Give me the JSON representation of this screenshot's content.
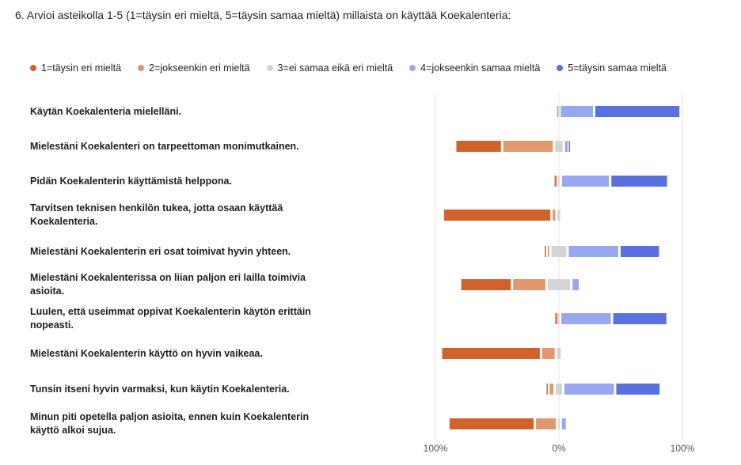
{
  "question": "6. Arvioi asteikolla 1-5 (1=täysin eri mieltä, 5=täysin samaa mieltä) millaista on käyttää Koekalenteria:",
  "chart_data": {
    "type": "bar",
    "stacking": "diverging",
    "legend_position": "top",
    "series": [
      {
        "name": "1=täysin eri mieltä",
        "color": "#d2622c"
      },
      {
        "name": "2=jokseenkin eri mieltä",
        "color": "#e0986c"
      },
      {
        "name": "3=ei samaa eikä eri mieltä",
        "color": "#d4d4d4"
      },
      {
        "name": "4=jokseenkin samaa mieltä",
        "color": "#97a8f0"
      },
      {
        "name": "5=täysin samaa mieltä",
        "color": "#5a70e0"
      }
    ],
    "categories": [
      "Käytän Koekalenteria mielelläni.",
      "Mielestäni Koekalenteri on tarpeettoman monimutkainen.",
      "Pidän Koekalenterin käyttämistä helppona.",
      "Tarvitsen teknisen henkilön tukea, jotta osaan käyttää Koekalenteria.",
      "Mielestäni Koekalenterin eri osat toimivat hyvin yhteen.",
      "Mielestäni Koekalenterissa on liian paljon eri lailla toimivia asioita.",
      "Luulen, että useimmat oppivat Koekalenterin käytön erittäin nopeasti.",
      "Mielestäni Koekalenterin käyttö on hyvin vaikeaa.",
      "Tunsin itseni hyvin varmaksi, kun käytin Koekalenteria.",
      "Minun piti opetella paljon asioita, ennen kuin Koekalenterin käyttö alkoi sujua."
    ],
    "values": [
      [
        0,
        1,
        1,
        28,
        70
      ],
      [
        38,
        42,
        8,
        4,
        1
      ],
      [
        1,
        1,
        3,
        40,
        47
      ],
      [
        88,
        4,
        4,
        0,
        0
      ],
      [
        2,
        3,
        14,
        42,
        33
      ],
      [
        42,
        28,
        20,
        7,
        0
      ],
      [
        1,
        1,
        2,
        42,
        45
      ],
      [
        81,
        12,
        5,
        0,
        0
      ],
      [
        2,
        5,
        7,
        42,
        37
      ],
      [
        70,
        18,
        3,
        5,
        0
      ]
    ],
    "xlim": [
      -100,
      100
    ],
    "x_ticks": [
      "100%",
      "0%",
      "100%"
    ],
    "grid": true
  }
}
